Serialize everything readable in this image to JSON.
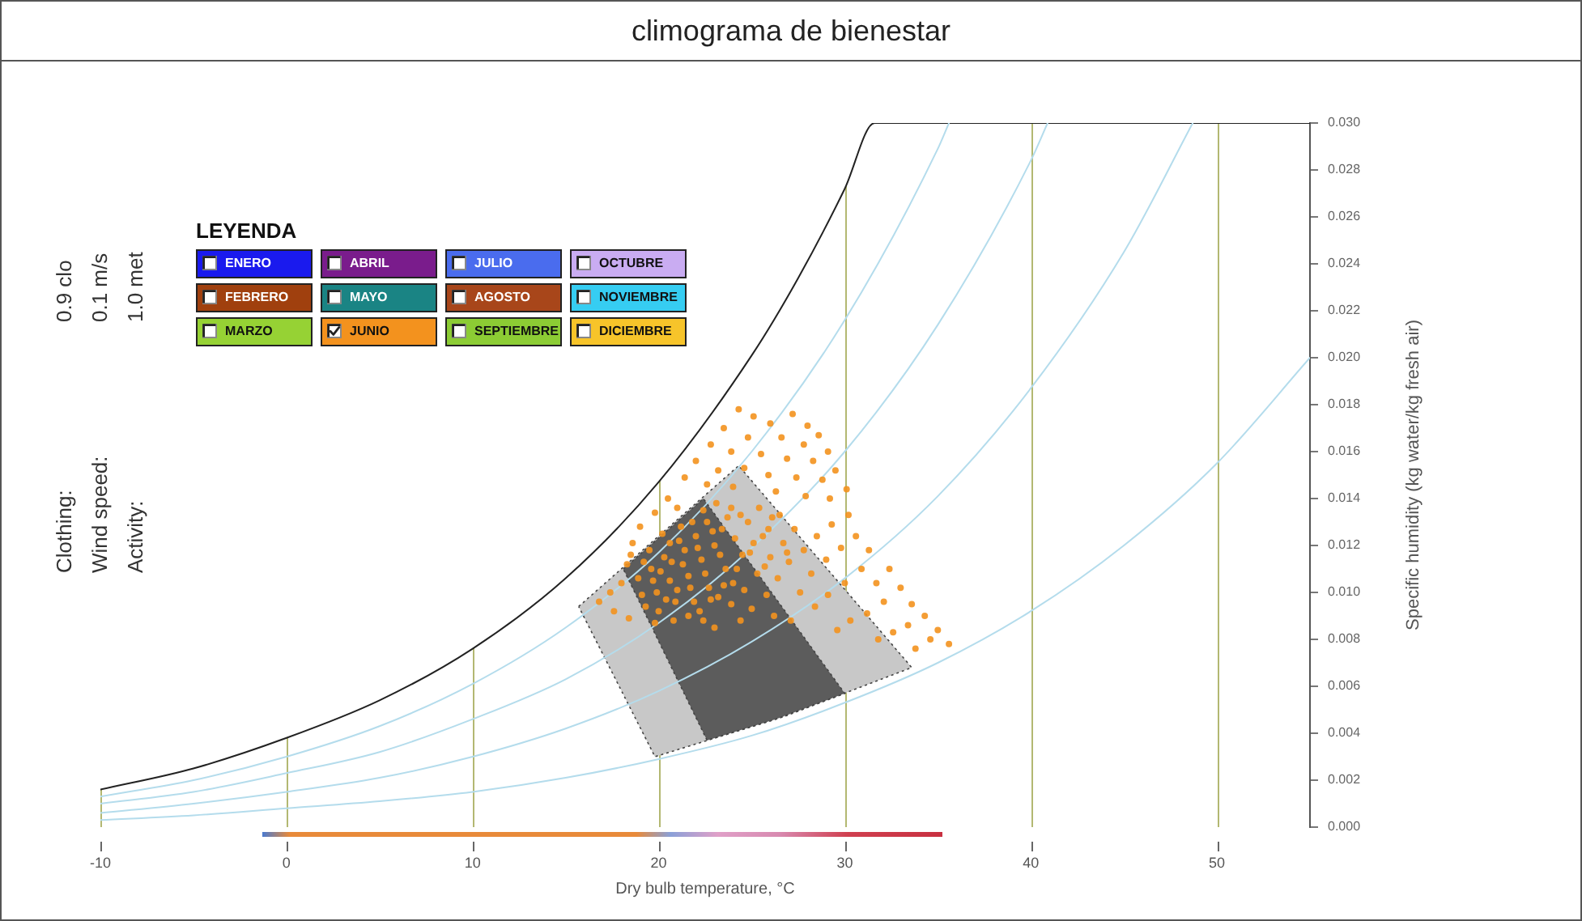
{
  "chart_data": {
    "type": "scatter",
    "title": "climograma de bienestar",
    "xlabel": "Dry bulb temperature, °C",
    "ylabel": "Specific humidity (kg water/kg fresh air)",
    "legend_title": "LEYENDA",
    "annotations": [
      "0.9 clo",
      "0.1 m/s",
      "1.0 met",
      "Clothing:",
      "Wind speed:",
      "Activity:"
    ],
    "xlim": [
      -10,
      55
    ],
    "xticks": [
      -10,
      0,
      10,
      20,
      30,
      40,
      50
    ],
    "ylim": [
      0,
      0.03
    ],
    "yticks": [
      {
        "value": 0,
        "label": "0.000"
      },
      0.002,
      0.004,
      0.006,
      0.008,
      {
        "value": 0.01,
        "label": "0.010"
      },
      0.012,
      0.014,
      0.016,
      0.018,
      {
        "value": 0.02,
        "label": "0.020"
      },
      0.022,
      0.024,
      0.026,
      0.028,
      {
        "value": 0.03,
        "label": "0.030"
      }
    ],
    "grid": "x",
    "legend": "top left",
    "series": [
      {
        "type": "area",
        "color": "#c8c8c8",
        "line_style": "dotted",
        "x": [
          15.7,
          24.3,
          33.6,
          26.7,
          19.8,
          15.7
        ],
        "values": [
          0.0094,
          0.0154,
          0.0068,
          0.0047,
          0.003,
          0.0094
        ]
      },
      {
        "type": "area",
        "color": "#5c5c5c",
        "line_style": "dotted",
        "x": [
          18.1,
          22.4,
          30.0,
          26.3,
          22.6,
          18.1
        ],
        "values": [
          0.011,
          0.014,
          0.0057,
          0.0046,
          0.0037,
          0.011
        ]
      },
      {
        "type": "line",
        "color": "#222222",
        "x": [
          -10,
          -5,
          0,
          5,
          10,
          15,
          20,
          25,
          27.5,
          30,
          31.6,
          55
        ],
        "values": [
          0.0016,
          0.0025,
          0.0038,
          0.0054,
          0.0076,
          0.0106,
          0.0147,
          0.0201,
          0.0234,
          0.0272,
          0.03,
          0.03
        ]
      },
      {
        "type": "line",
        "color": "#b4dcec",
        "x": [
          -10,
          -5,
          0,
          5,
          10,
          15,
          20,
          25,
          30,
          35,
          40,
          45,
          50,
          55
        ],
        "values": [
          0.0003,
          0.0005,
          0.0008,
          0.0011,
          0.0015,
          0.0021,
          0.0029,
          0.0039,
          0.0053,
          0.007,
          0.0092,
          0.012,
          0.0155,
          0.02
        ]
      },
      {
        "type": "line",
        "color": "#b4dcec",
        "x": [
          -10,
          -5,
          0,
          5,
          10,
          15,
          20,
          25,
          30,
          35,
          40,
          45,
          48.7
        ],
        "values": [
          0.0006,
          0.001,
          0.0015,
          0.0021,
          0.003,
          0.0042,
          0.0058,
          0.0079,
          0.0106,
          0.0141,
          0.0187,
          0.0245,
          0.03
        ]
      },
      {
        "type": "line",
        "color": "#b4dcec",
        "x": [
          -10,
          -5,
          0,
          5,
          10,
          15,
          20,
          25,
          30,
          35,
          40,
          40.9
        ],
        "values": [
          0.001,
          0.0015,
          0.0023,
          0.0032,
          0.0046,
          0.0063,
          0.0087,
          0.0119,
          0.016,
          0.0214,
          0.0284,
          0.03
        ]
      },
      {
        "type": "line",
        "color": "#b4dcec",
        "x": [
          -10,
          -5,
          0,
          5,
          10,
          15,
          20,
          25,
          30,
          35,
          35.6
        ],
        "values": [
          0.0013,
          0.002,
          0.003,
          0.0043,
          0.0061,
          0.0085,
          0.0117,
          0.016,
          0.0216,
          0.0289,
          0.03
        ]
      },
      {
        "name": "ENERO",
        "color": "#1a1aee"
      },
      {
        "name": "FEBRERO",
        "color": "#a0400e"
      },
      {
        "name": "MARZO",
        "color": "#96d234"
      },
      {
        "name": "ABRIL",
        "color": "#7a1c8c"
      },
      {
        "name": "MAYO",
        "color": "#1a8484"
      },
      {
        "name": "JUNIO",
        "color": "#f3921e",
        "marker": "circle",
        "x": [
          24.3,
          25.1,
          26.0,
          27.2,
          28.0,
          23.5,
          24.8,
          26.6,
          27.8,
          28.6,
          22.8,
          23.9,
          25.5,
          26.9,
          28.3,
          29.1,
          22.0,
          23.2,
          24.6,
          25.9,
          27.4,
          28.8,
          29.5,
          21.4,
          22.6,
          24.0,
          26.3,
          27.9,
          29.2,
          30.1,
          19.0,
          19.8,
          20.5,
          21.0,
          20.2,
          18.6,
          19.5,
          18.3,
          18.9,
          19.6,
          20.3,
          21.1,
          21.8,
          22.4,
          23.1,
          23.7,
          22.9,
          22.1,
          21.3,
          20.6,
          19.9,
          20.9,
          21.7,
          22.5,
          23.3,
          24.1,
          24.8,
          25.4,
          26.1,
          25.6,
          24.9,
          24.2,
          23.5,
          22.8,
          22.2,
          23.9,
          24.6,
          25.3,
          26.0,
          26.7,
          27.3,
          27.0,
          26.4,
          25.8,
          25.0,
          24.4,
          21.6,
          20.8,
          23.0,
          19.3,
          27.8,
          28.5,
          29.3,
          30.2,
          28.2,
          29.0,
          29.8,
          30.6,
          31.3,
          30.9,
          30.0,
          29.1,
          28.4,
          27.6,
          31.7,
          32.4,
          33.0,
          32.1,
          31.2,
          30.3,
          33.6,
          34.3,
          33.4,
          32.6,
          35.0,
          35.6,
          34.6,
          33.8,
          31.8,
          29.6,
          27.1,
          26.2,
          18.5,
          19.2,
          19.7,
          20.1,
          20.7,
          21.4,
          22.0,
          22.6,
          23.4,
          23.9,
          24.4,
          23.0,
          22.3,
          21.6,
          21.0,
          20.4,
          21.9,
          22.7,
          23.6,
          24.5,
          25.1,
          25.9,
          26.5,
          24.0,
          23.2,
          22.4,
          20.0,
          19.1,
          18.0,
          17.4,
          16.8,
          17.6,
          18.4,
          19.8,
          25.7,
          26.9,
          21.2,
          20.6
        ],
        "values": [
          0.0178,
          0.0175,
          0.0172,
          0.0176,
          0.0171,
          0.017,
          0.0166,
          0.0166,
          0.0163,
          0.0167,
          0.0163,
          0.016,
          0.0159,
          0.0157,
          0.0156,
          0.016,
          0.0156,
          0.0152,
          0.0153,
          0.015,
          0.0149,
          0.0148,
          0.0152,
          0.0149,
          0.0146,
          0.0145,
          0.0143,
          0.0141,
          0.014,
          0.0144,
          0.0128,
          0.0134,
          0.014,
          0.0136,
          0.0125,
          0.0121,
          0.0118,
          0.0112,
          0.0106,
          0.011,
          0.0115,
          0.0122,
          0.013,
          0.0135,
          0.0138,
          0.0132,
          0.0126,
          0.0119,
          0.0112,
          0.0105,
          0.01,
          0.0096,
          0.0102,
          0.0108,
          0.0116,
          0.0123,
          0.013,
          0.0136,
          0.0132,
          0.0124,
          0.0117,
          0.011,
          0.0103,
          0.0097,
          0.0092,
          0.0095,
          0.0101,
          0.0108,
          0.0115,
          0.0121,
          0.0127,
          0.0113,
          0.0106,
          0.0099,
          0.0093,
          0.0088,
          0.009,
          0.0088,
          0.0085,
          0.0094,
          0.0118,
          0.0124,
          0.0129,
          0.0133,
          0.0108,
          0.0114,
          0.0119,
          0.0124,
          0.0118,
          0.011,
          0.0104,
          0.0099,
          0.0094,
          0.01,
          0.0104,
          0.011,
          0.0102,
          0.0096,
          0.0091,
          0.0088,
          0.0095,
          0.009,
          0.0086,
          0.0083,
          0.0084,
          0.0078,
          0.008,
          0.0076,
          0.008,
          0.0084,
          0.0088,
          0.009,
          0.0116,
          0.0113,
          0.0105,
          0.0109,
          0.0113,
          0.0118,
          0.0124,
          0.013,
          0.0127,
          0.0136,
          0.0133,
          0.012,
          0.0114,
          0.0107,
          0.0101,
          0.0097,
          0.0096,
          0.0102,
          0.011,
          0.0116,
          0.0121,
          0.0127,
          0.0133,
          0.0104,
          0.0098,
          0.0088,
          0.0092,
          0.0099,
          0.0104,
          0.01,
          0.0096,
          0.0092,
          0.0089,
          0.0087,
          0.0111,
          0.0117,
          0.0128,
          0.0121
        ]
      },
      {
        "name": "JULIO",
        "color": "#4a6cee"
      },
      {
        "name": "AGOSTO",
        "color": "#a8461a"
      },
      {
        "name": "SEPTIEMBRE",
        "color": "#8ccc34"
      },
      {
        "name": "OCTUBRE",
        "color": "#c9acf2"
      },
      {
        "name": "NOVIEMBRE",
        "color": "#36cdf2"
      },
      {
        "name": "DICIEMBRE",
        "color": "#f7c42a"
      }
    ]
  }
}
